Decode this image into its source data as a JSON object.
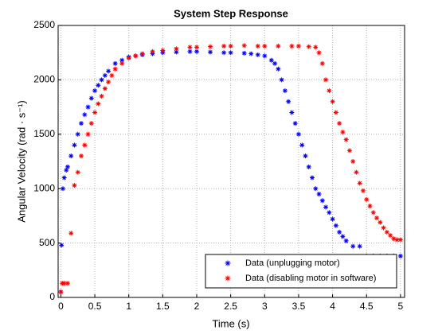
{
  "chart_data": {
    "type": "scatter",
    "title": "System Step Response",
    "xlabel": "Time (s)",
    "ylabel": "Angular Velocity (rad · s⁻¹)",
    "xlim": [
      -0.04,
      5.06
    ],
    "ylim": [
      0,
      2500
    ],
    "xticks": [
      0,
      0.5,
      1,
      1.5,
      2,
      2.5,
      3,
      3.5,
      4,
      4.5,
      5
    ],
    "yticks": [
      0,
      500,
      1000,
      1500,
      2000,
      2500
    ],
    "grid": true,
    "legend": "lower right",
    "series": [
      {
        "name": "Data (unplugging motor)",
        "color": "#0000ff",
        "x": [
          0,
          0.01,
          0.03,
          0.05,
          0.08,
          0.1,
          0.15,
          0.2,
          0.25,
          0.3,
          0.35,
          0.4,
          0.45,
          0.5,
          0.55,
          0.6,
          0.65,
          0.7,
          0.8,
          0.9,
          1.0,
          1.1,
          1.2,
          1.35,
          1.5,
          1.7,
          1.9,
          2.0,
          2.2,
          2.4,
          2.5,
          2.7,
          2.8,
          2.9,
          3.0,
          3.1,
          3.15,
          3.2,
          3.25,
          3.3,
          3.35,
          3.4,
          3.45,
          3.5,
          3.55,
          3.6,
          3.65,
          3.7,
          3.75,
          3.8,
          3.85,
          3.9,
          3.95,
          4.0,
          4.05,
          4.1,
          4.15,
          4.2,
          4.3,
          4.4,
          4.5,
          4.6,
          4.7,
          4.8,
          4.9,
          5.0
        ],
        "values": [
          50,
          480,
          1000,
          1100,
          1170,
          1200,
          1300,
          1400,
          1500,
          1600,
          1680,
          1750,
          1830,
          1900,
          1950,
          2000,
          2040,
          2080,
          2150,
          2180,
          2210,
          2220,
          2230,
          2240,
          2250,
          2255,
          2260,
          2260,
          2255,
          2250,
          2250,
          2245,
          2240,
          2230,
          2220,
          2180,
          2150,
          2100,
          2000,
          1900,
          1800,
          1700,
          1600,
          1500,
          1400,
          1300,
          1200,
          1100,
          1000,
          950,
          890,
          830,
          780,
          720,
          660,
          600,
          560,
          520,
          470,
          470,
          380,
          380,
          380,
          380,
          380,
          380
        ]
      },
      {
        "name": "Data (disabling motor in software)",
        "color": "#ff0000",
        "x": [
          0,
          0.02,
          0.05,
          0.1,
          0.15,
          0.2,
          0.25,
          0.3,
          0.35,
          0.4,
          0.45,
          0.5,
          0.55,
          0.6,
          0.65,
          0.7,
          0.75,
          0.8,
          0.9,
          1.0,
          1.1,
          1.2,
          1.35,
          1.5,
          1.7,
          1.9,
          2.0,
          2.2,
          2.4,
          2.5,
          2.7,
          2.9,
          3.0,
          3.2,
          3.4,
          3.5,
          3.65,
          3.75,
          3.8,
          3.85,
          3.9,
          3.95,
          4.0,
          4.05,
          4.1,
          4.15,
          4.2,
          4.25,
          4.3,
          4.35,
          4.4,
          4.45,
          4.5,
          4.55,
          4.6,
          4.65,
          4.7,
          4.75,
          4.8,
          4.85,
          4.9,
          4.95,
          5.0
        ],
        "values": [
          50,
          130,
          130,
          130,
          590,
          1030,
          1150,
          1300,
          1400,
          1500,
          1600,
          1700,
          1780,
          1850,
          1920,
          1980,
          2040,
          2100,
          2150,
          2200,
          2220,
          2240,
          2260,
          2270,
          2285,
          2300,
          2300,
          2305,
          2310,
          2310,
          2315,
          2310,
          2310,
          2310,
          2310,
          2310,
          2305,
          2300,
          2250,
          2150,
          2000,
          1900,
          1800,
          1700,
          1600,
          1520,
          1450,
          1350,
          1250,
          1150,
          1050,
          980,
          900,
          840,
          780,
          730,
          690,
          640,
          600,
          570,
          540,
          530,
          530
        ]
      }
    ]
  }
}
